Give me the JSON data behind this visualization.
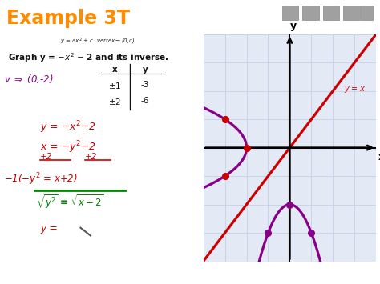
{
  "title": "Example 3T",
  "title_color": "#FF8C00",
  "bg_color": "#FFFFFF",
  "grid_color": "#C8D4E8",
  "grid_bg": "#E4EAF5",
  "parabola_color": "#880088",
  "line_yx_color": "#CC0000",
  "dot_red": "#CC0000",
  "dot_purple": "#880088",
  "ann_red": "#CC0000",
  "ann_purple": "#880088",
  "ann_green": "#008800",
  "ann_black": "#111111",
  "graph_xlim": [
    -4,
    4
  ],
  "graph_ylim": [
    -4,
    4
  ]
}
